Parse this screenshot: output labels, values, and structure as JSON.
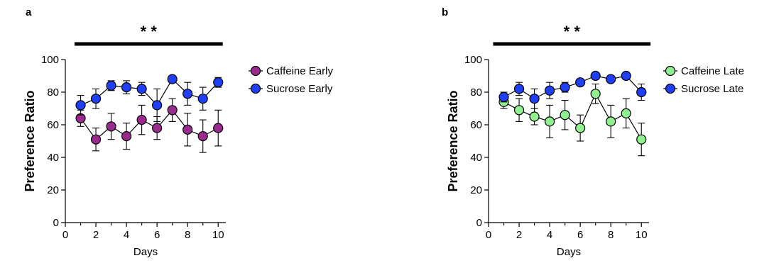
{
  "chart_data": [
    {
      "type": "line",
      "panel_label": "a",
      "significance": "* *",
      "xlabel": "Days",
      "ylabel": "Preference Ratio",
      "xlim": [
        0,
        10.5
      ],
      "ylim": [
        0,
        100
      ],
      "xticks": [
        0,
        2,
        4,
        6,
        8,
        10
      ],
      "yticks": [
        0,
        20,
        40,
        60,
        80,
        100
      ],
      "x": [
        1,
        2,
        3,
        4,
        5,
        6,
        7,
        8,
        9,
        10
      ],
      "significance_bar_x": [
        0.6,
        10.3
      ],
      "grid": false,
      "legend_position": "right",
      "series": [
        {
          "name": "Caffeine Early",
          "color": "#9b2a8f",
          "values": [
            64,
            51,
            59,
            53,
            63,
            58,
            69,
            57,
            53,
            58
          ],
          "error": [
            5,
            7,
            8,
            8,
            9,
            7,
            7,
            10,
            10,
            11
          ]
        },
        {
          "name": "Sucrose Early",
          "color": "#1f3ff5",
          "values": [
            72,
            76,
            84,
            83,
            82,
            72,
            88,
            79,
            76,
            86
          ],
          "error": [
            6,
            6,
            3,
            4,
            4,
            10,
            2,
            7,
            7,
            3
          ]
        }
      ]
    },
    {
      "type": "line",
      "panel_label": "b",
      "significance": "* *",
      "xlabel": "Days",
      "ylabel": "Preference Ratio",
      "xlim": [
        0,
        10.5
      ],
      "ylim": [
        0,
        100
      ],
      "xticks": [
        0,
        2,
        4,
        6,
        8,
        10
      ],
      "yticks": [
        0,
        20,
        40,
        60,
        80,
        100
      ],
      "x": [
        1,
        2,
        3,
        4,
        5,
        6,
        7,
        8,
        9,
        10
      ],
      "significance_bar_x": [
        0.3,
        10.6
      ],
      "grid": false,
      "legend_position": "right",
      "series": [
        {
          "name": "Caffeine Late",
          "color": "#90f090",
          "values": [
            74,
            69,
            65,
            62,
            66,
            58,
            79,
            62,
            67,
            51
          ],
          "error": [
            4,
            7,
            5,
            10,
            9,
            8,
            6,
            10,
            9,
            10
          ]
        },
        {
          "name": "Sucrose Late",
          "color": "#1f3ff5",
          "values": [
            77,
            82,
            76,
            81,
            83,
            86,
            90,
            88,
            90,
            80
          ],
          "error": [
            3,
            4,
            6,
            5,
            3,
            2,
            2,
            2,
            2,
            5
          ]
        }
      ]
    }
  ]
}
